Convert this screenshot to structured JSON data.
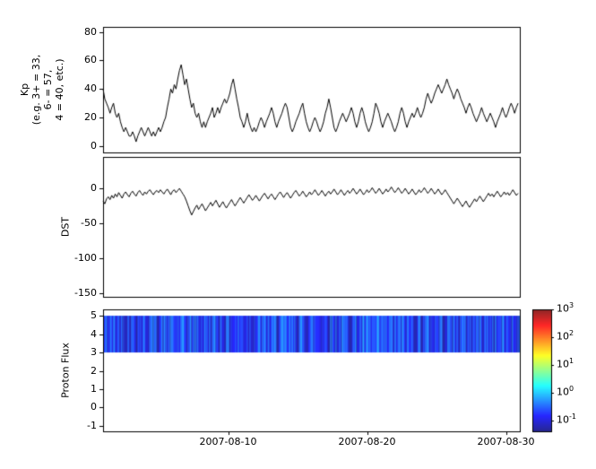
{
  "figure": {
    "background": "#ffffff",
    "axis_color": "#000000",
    "line_color": "#000000"
  },
  "x_ticks": {
    "days": [
      9,
      19,
      29
    ],
    "labels": [
      "2007-08-10",
      "2007-08-20",
      "2007-08-30"
    ],
    "domain_days": [
      0,
      30
    ]
  },
  "chart_data": [
    {
      "type": "line",
      "name": "kp-index",
      "ylabel": "Kp\n(e.g. 3+ = 33,\n6- = 57,\n4 = 40, etc.)",
      "ylim": [
        -4.5,
        83.5
      ],
      "yticks": [
        0,
        20,
        40,
        60,
        80
      ],
      "x_start_day": 0,
      "x_step_days": 0.125,
      "values": [
        40,
        33,
        30,
        27,
        23,
        27,
        30,
        23,
        20,
        23,
        17,
        13,
        10,
        13,
        10,
        7,
        7,
        10,
        7,
        3,
        7,
        10,
        13,
        10,
        7,
        10,
        13,
        10,
        7,
        10,
        7,
        10,
        13,
        10,
        13,
        17,
        20,
        27,
        33,
        40,
        37,
        43,
        40,
        47,
        53,
        57,
        50,
        43,
        47,
        40,
        33,
        27,
        30,
        23,
        20,
        23,
        17,
        13,
        17,
        13,
        17,
        20,
        23,
        27,
        20,
        23,
        27,
        23,
        27,
        30,
        33,
        30,
        33,
        37,
        43,
        47,
        40,
        33,
        27,
        20,
        17,
        13,
        17,
        23,
        17,
        13,
        10,
        13,
        10,
        13,
        17,
        20,
        17,
        13,
        17,
        20,
        23,
        27,
        23,
        17,
        13,
        17,
        20,
        23,
        27,
        30,
        27,
        20,
        13,
        10,
        13,
        17,
        20,
        23,
        27,
        30,
        23,
        17,
        13,
        10,
        13,
        17,
        20,
        17,
        13,
        10,
        13,
        17,
        23,
        27,
        33,
        27,
        20,
        13,
        10,
        13,
        17,
        20,
        23,
        20,
        17,
        20,
        23,
        27,
        23,
        17,
        13,
        17,
        23,
        27,
        23,
        17,
        13,
        10,
        13,
        17,
        23,
        30,
        27,
        23,
        17,
        13,
        17,
        20,
        23,
        20,
        17,
        13,
        10,
        13,
        17,
        23,
        27,
        23,
        17,
        13,
        17,
        20,
        23,
        20,
        23,
        27,
        23,
        20,
        23,
        27,
        33,
        37,
        33,
        30,
        33,
        37,
        40,
        43,
        40,
        37,
        40,
        43,
        47,
        43,
        40,
        37,
        33,
        37,
        40,
        37,
        33,
        30,
        27,
        23,
        27,
        30,
        27,
        23,
        20,
        17,
        20,
        23,
        27,
        23,
        20,
        17,
        20,
        23,
        20,
        17,
        13,
        17,
        20,
        23,
        27,
        23,
        20,
        23,
        27,
        30,
        27,
        23,
        27,
        30
      ]
    },
    {
      "type": "line",
      "name": "dst-index",
      "ylabel": "DST",
      "ylim": [
        -155,
        45
      ],
      "yticks": [
        0,
        -50,
        -100,
        -150
      ],
      "x_start_day": 0,
      "x_step_days": 0.125,
      "values": [
        -18,
        -22,
        -15,
        -12,
        -16,
        -10,
        -14,
        -8,
        -12,
        -6,
        -10,
        -14,
        -8,
        -5,
        -9,
        -12,
        -7,
        -4,
        -8,
        -11,
        -6,
        -3,
        -7,
        -10,
        -5,
        -8,
        -4,
        -2,
        -6,
        -9,
        -5,
        -3,
        -6,
        -2,
        -5,
        -8,
        -4,
        -1,
        -5,
        -9,
        -4,
        -2,
        -6,
        -3,
        0,
        -4,
        -8,
        -12,
        -18,
        -25,
        -32,
        -38,
        -33,
        -28,
        -24,
        -30,
        -26,
        -22,
        -27,
        -32,
        -28,
        -24,
        -20,
        -25,
        -21,
        -17,
        -22,
        -27,
        -23,
        -19,
        -24,
        -28,
        -24,
        -20,
        -16,
        -21,
        -25,
        -21,
        -17,
        -13,
        -17,
        -21,
        -17,
        -13,
        -9,
        -13,
        -17,
        -14,
        -10,
        -14,
        -18,
        -14,
        -10,
        -7,
        -11,
        -15,
        -11,
        -8,
        -12,
        -16,
        -12,
        -8,
        -5,
        -9,
        -13,
        -9,
        -6,
        -10,
        -14,
        -10,
        -6,
        -3,
        -7,
        -11,
        -8,
        -4,
        -8,
        -12,
        -9,
        -5,
        -9,
        -6,
        -2,
        -6,
        -10,
        -7,
        -3,
        -7,
        -11,
        -7,
        -4,
        -8,
        -5,
        -1,
        -5,
        -9,
        -6,
        -2,
        -6,
        -10,
        -6,
        -3,
        -7,
        -4,
        0,
        -4,
        -8,
        -5,
        -1,
        -5,
        -9,
        -6,
        -2,
        -6,
        -3,
        1,
        -3,
        -7,
        -4,
        0,
        -4,
        -8,
        -5,
        -1,
        -5,
        -2,
        2,
        -2,
        -6,
        -3,
        1,
        -3,
        -7,
        -4,
        0,
        -4,
        -8,
        -5,
        -1,
        -5,
        -9,
        -6,
        -2,
        -6,
        -3,
        1,
        -3,
        -7,
        -4,
        0,
        -4,
        -8,
        -5,
        -1,
        -5,
        -9,
        -6,
        -2,
        -6,
        -10,
        -14,
        -18,
        -22,
        -18,
        -14,
        -18,
        -22,
        -26,
        -22,
        -18,
        -23,
        -27,
        -23,
        -19,
        -15,
        -19,
        -15,
        -11,
        -15,
        -19,
        -15,
        -11,
        -7,
        -11,
        -8,
        -12,
        -8,
        -4,
        -8,
        -12,
        -9,
        -5,
        -9,
        -6,
        -10,
        -6,
        -2,
        -6,
        -10,
        -7
      ]
    },
    {
      "type": "heatmap",
      "name": "proton-flux-spectrogram",
      "ylabel": "Proton Flux",
      "ylim": [
        -1.3,
        5.35
      ],
      "yticks": [
        -1,
        0,
        1,
        2,
        3,
        4,
        5
      ],
      "band_y": [
        3,
        5
      ],
      "flux_log10_range": [
        -1.35,
        -0.15
      ],
      "colormap": "jet",
      "colorbar": {
        "scale": "log",
        "log_range": [
          -1.4,
          3
        ],
        "tick_exponents": [
          3,
          2,
          1,
          0,
          -1
        ],
        "tick_labels": [
          "10^3",
          "10^2",
          "10^1",
          "10^0",
          "10^-1"
        ]
      }
    }
  ]
}
